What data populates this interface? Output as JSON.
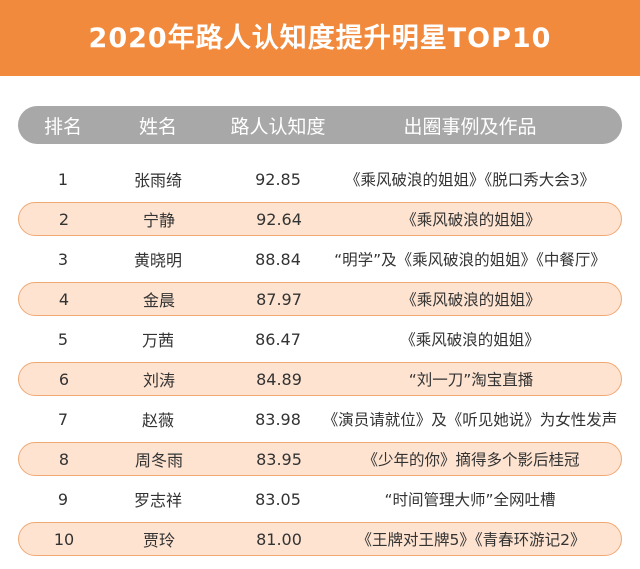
{
  "title": "2020年路人认知度提升明星TOP10",
  "headers": {
    "rank": "排名",
    "name": "姓名",
    "score": "路人认知度",
    "works": "出圈事例及作品"
  },
  "rows": [
    {
      "rank": "1",
      "name": "张雨绮",
      "score": "92.85",
      "works": "《乘风破浪的姐姐》《脱口秀大会3》"
    },
    {
      "rank": "2",
      "name": "宁静",
      "score": "92.64",
      "works": "《乘风破浪的姐姐》"
    },
    {
      "rank": "3",
      "name": "黄晓明",
      "score": "88.84",
      "works": "“明学”及《乘风破浪的姐姐》《中餐厅》"
    },
    {
      "rank": "4",
      "name": "金晨",
      "score": "87.97",
      "works": "《乘风破浪的姐姐》"
    },
    {
      "rank": "5",
      "name": "万茜",
      "score": "86.47",
      "works": "《乘风破浪的姐姐》"
    },
    {
      "rank": "6",
      "name": "刘涛",
      "score": "84.89",
      "works": "“刘一刀”淘宝直播"
    },
    {
      "rank": "7",
      "name": "赵薇",
      "score": "83.98",
      "works": "《演员请就位》及《听见她说》为女性发声"
    },
    {
      "rank": "8",
      "name": "周冬雨",
      "score": "83.95",
      "works": "《少年的你》摘得多个影后桂冠"
    },
    {
      "rank": "9",
      "name": "罗志祥",
      "score": "83.05",
      "works": "“时间管理大师”全网吐槽"
    },
    {
      "rank": "10",
      "name": "贾玲",
      "score": "81.00",
      "works": "《王牌对王牌5》《青春环游记2》"
    }
  ],
  "colors": {
    "banner": "#f28a3d",
    "header": "#a8a8a8",
    "row_highlight": "#fde3d0",
    "row_border": "#f0a875"
  }
}
